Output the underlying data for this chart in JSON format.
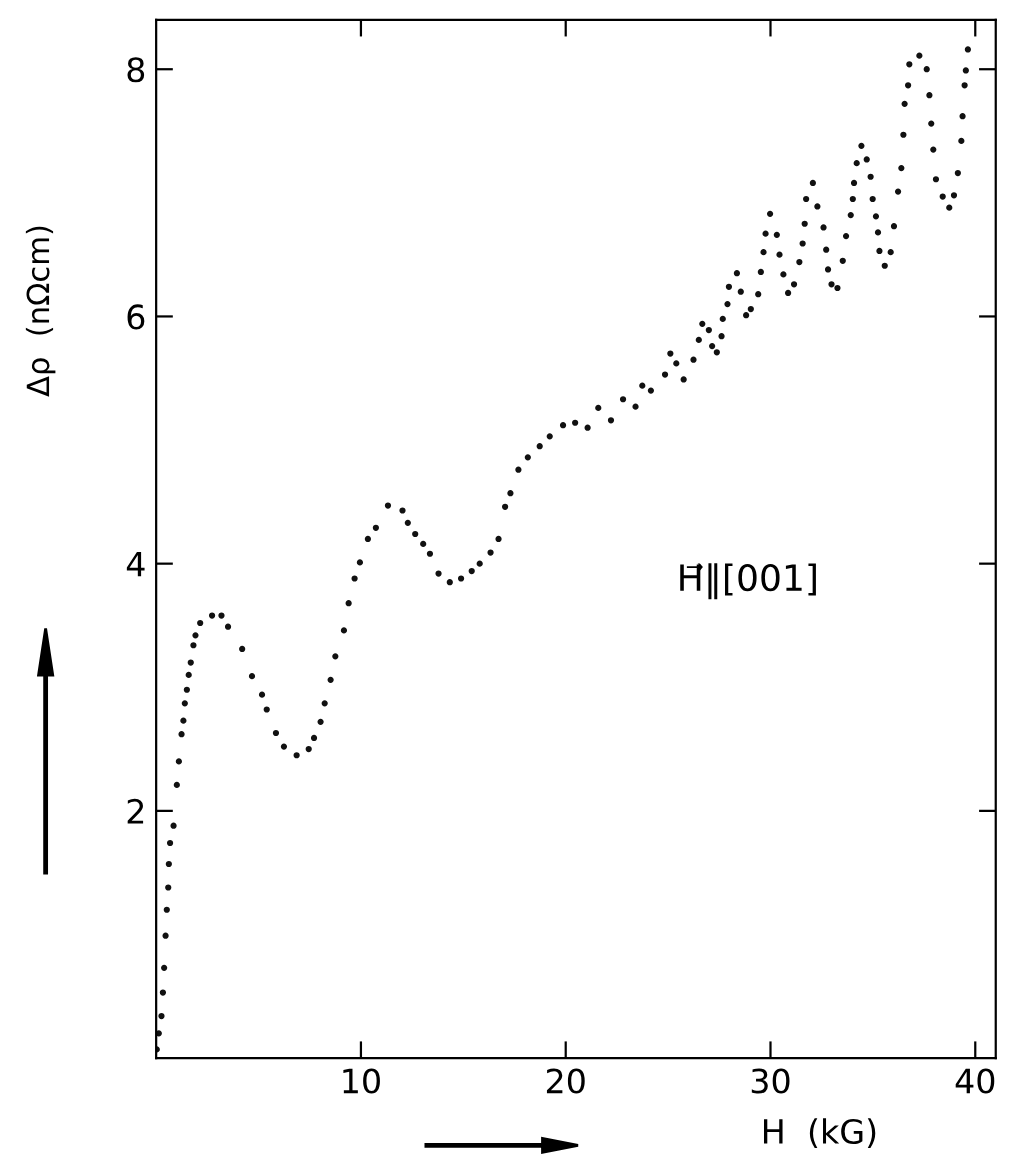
{
  "chart_data": {
    "type": "scatter",
    "xlabel": "H  (kG)",
    "ylabel": "Δρ  (nΩcm)",
    "annotations": [
      "H⃗‖[001]"
    ],
    "xlim": [
      0,
      41
    ],
    "ylim": [
      0,
      8.4
    ],
    "xticks": [
      10,
      20,
      30,
      40
    ],
    "yticks": [
      2,
      4,
      6,
      8
    ],
    "grid": false,
    "legend": false,
    "marker": "circle",
    "series": [
      {
        "color": "#111111",
        "x": [
          0.03,
          0.13,
          0.26,
          0.33,
          0.39,
          0.46,
          0.52,
          0.59,
          0.62,
          0.68,
          0.85,
          1.01,
          1.11,
          1.24,
          1.33,
          1.4,
          1.5,
          1.59,
          1.69,
          1.82,
          1.92,
          2.15,
          2.73,
          3.19,
          3.51,
          4.2,
          4.68,
          5.17,
          5.4,
          5.85,
          6.24,
          6.86,
          7.45,
          7.71,
          8.03,
          8.23,
          8.52,
          8.75,
          9.17,
          9.4,
          9.69,
          9.95,
          10.34,
          10.73,
          11.32,
          12.03,
          12.29,
          12.65,
          13.04,
          13.37,
          13.79,
          14.34,
          14.89,
          15.41,
          15.8,
          16.33,
          16.72,
          17.04,
          17.3,
          17.69,
          18.15,
          18.73,
          19.22,
          19.87,
          20.46,
          21.07,
          21.59,
          22.21,
          22.8,
          23.41,
          23.74,
          24.16,
          24.85,
          25.11,
          25.4,
          25.76,
          26.24,
          26.5,
          26.67,
          26.99,
          27.15,
          27.38,
          27.61,
          27.67,
          27.9,
          27.97,
          28.36,
          28.55,
          28.81,
          29.04,
          29.4,
          29.53,
          29.66,
          29.76,
          29.98,
          30.31,
          30.44,
          30.63,
          30.86,
          31.15,
          31.41,
          31.57,
          31.67,
          31.74,
          32.07,
          32.29,
          32.59,
          32.72,
          32.81,
          32.98,
          33.27,
          33.53,
          33.69,
          33.92,
          34.02,
          34.08,
          34.21,
          34.44,
          34.7,
          34.89,
          34.99,
          35.15,
          35.25,
          35.32,
          35.58,
          35.87,
          36.03,
          36.23,
          36.39,
          36.49,
          36.55,
          36.72,
          36.78,
          37.27,
          37.63,
          37.76,
          37.85,
          37.95,
          38.08,
          38.41,
          38.73,
          38.96,
          39.15,
          39.32,
          39.38,
          39.48,
          39.54,
          39.64
        ],
        "values": [
          0.07,
          0.2,
          0.34,
          0.53,
          0.73,
          0.99,
          1.2,
          1.38,
          1.57,
          1.74,
          1.88,
          2.21,
          2.4,
          2.62,
          2.73,
          2.87,
          2.98,
          3.1,
          3.2,
          3.34,
          3.42,
          3.52,
          3.58,
          3.58,
          3.49,
          3.31,
          3.09,
          2.94,
          2.82,
          2.63,
          2.52,
          2.45,
          2.5,
          2.59,
          2.72,
          2.87,
          3.06,
          3.25,
          3.46,
          3.68,
          3.88,
          4.01,
          4.2,
          4.29,
          4.47,
          4.43,
          4.33,
          4.24,
          4.16,
          4.08,
          3.92,
          3.85,
          3.88,
          3.94,
          4.0,
          4.09,
          4.2,
          4.46,
          4.57,
          4.76,
          4.86,
          4.95,
          5.03,
          5.12,
          5.14,
          5.1,
          5.26,
          5.16,
          5.33,
          5.27,
          5.44,
          5.4,
          5.53,
          5.7,
          5.62,
          5.49,
          5.65,
          5.81,
          5.94,
          5.89,
          5.76,
          5.71,
          5.84,
          5.98,
          6.1,
          6.24,
          6.35,
          6.2,
          6.01,
          6.06,
          6.18,
          6.36,
          6.52,
          6.67,
          6.83,
          6.66,
          6.5,
          6.34,
          6.19,
          6.26,
          6.44,
          6.59,
          6.75,
          6.95,
          7.08,
          6.89,
          6.72,
          6.54,
          6.38,
          6.26,
          6.23,
          6.45,
          6.65,
          6.82,
          6.95,
          7.08,
          7.24,
          7.38,
          7.27,
          7.13,
          6.95,
          6.81,
          6.68,
          6.53,
          6.41,
          6.52,
          6.73,
          7.01,
          7.2,
          7.47,
          7.72,
          7.87,
          8.04,
          8.11,
          8.0,
          7.79,
          7.56,
          7.35,
          7.11,
          6.97,
          6.88,
          6.98,
          7.16,
          7.42,
          7.62,
          7.87,
          7.99,
          8.16
        ]
      }
    ]
  }
}
